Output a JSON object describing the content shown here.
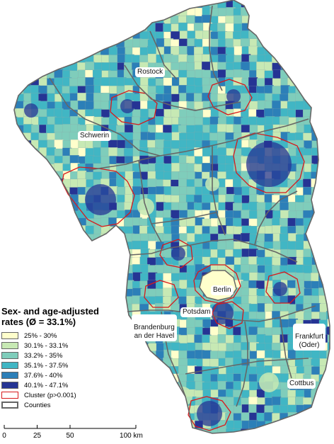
{
  "map": {
    "fill_colors": [
      "#ffffcc",
      "#c7e9b4",
      "#7fcdbb",
      "#41b6c4",
      "#2c7fb8",
      "#253494"
    ],
    "cluster_color": "#d7191c",
    "county_color": "#666666"
  },
  "cities": [
    {
      "id": "rostock",
      "label": "Rostock"
    },
    {
      "id": "schwerin",
      "label": "Schwerin"
    },
    {
      "id": "berlin",
      "label": "Berlin"
    },
    {
      "id": "potsdam",
      "label": "Potsdam"
    },
    {
      "id": "brandenburg",
      "label": "Brandenburg\nan der Havel"
    },
    {
      "id": "frankfurt",
      "label": "Frankfurt\n(Oder)"
    },
    {
      "id": "cottbus",
      "label": "Cottbus"
    }
  ],
  "legend": {
    "title_line1": "Sex- and age-adjusted",
    "title_line2": "rates (Ø = 33.1%)",
    "classes": [
      {
        "label": "25% - 30%",
        "color": "#ffffcc"
      },
      {
        "label": "30.1% - 33.1%",
        "color": "#c7e9b4"
      },
      {
        "label": "33.2% - 35%",
        "color": "#7fcdbb"
      },
      {
        "label": "35.1% - 37.5%",
        "color": "#41b6c4"
      },
      {
        "label": "37.6% - 40%",
        "color": "#2c7fb8"
      },
      {
        "label": "40.1% - 47.1%",
        "color": "#253494"
      }
    ],
    "cluster_label": "Cluster (p>0.001)",
    "counties_label": "Counties"
  },
  "scalebar": {
    "ticks": [
      "0",
      "25",
      "50",
      "100 km"
    ]
  }
}
